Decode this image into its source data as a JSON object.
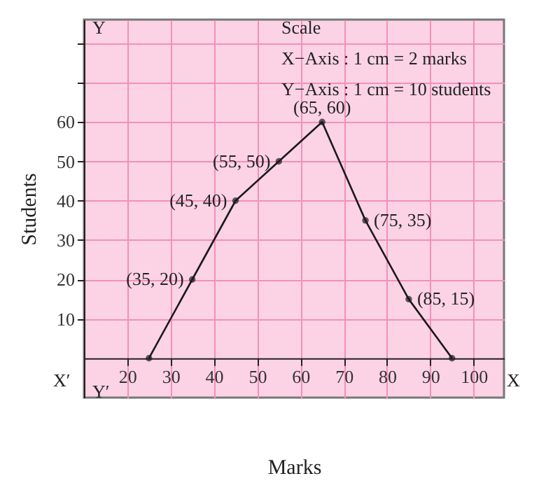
{
  "chart_data": {
    "type": "line",
    "xlabel": "Marks",
    "ylabel": "Students",
    "x": [
      25,
      35,
      45,
      55,
      65,
      75,
      85,
      95
    ],
    "values": [
      0,
      20,
      40,
      50,
      60,
      35,
      15,
      0
    ],
    "value_labels": [
      null,
      "(35, 20)",
      "(45, 40)",
      "(55, 50)",
      "(65, 60)",
      "(75, 35)",
      "(85, 15)",
      null
    ],
    "color": "#1a1a1a",
    "marker": "circle",
    "line_style": "solid",
    "grid": true,
    "xlim": [
      10,
      107
    ],
    "xticks": [
      20,
      30,
      40,
      50,
      60,
      70,
      80,
      90,
      100
    ],
    "ylim": [
      -10,
      86
    ],
    "yticks": [
      10,
      20,
      30,
      40,
      50,
      60,
      {
        "value": 70,
        "label": null
      },
      {
        "value": 80,
        "label": null
      }
    ],
    "annotations": [
      "Scale",
      "X−Axis :  1  cm = 2  marks",
      "Y−Axis : 1 cm = 10 students",
      "X′",
      "X",
      "Y",
      "Y′"
    ]
  }
}
